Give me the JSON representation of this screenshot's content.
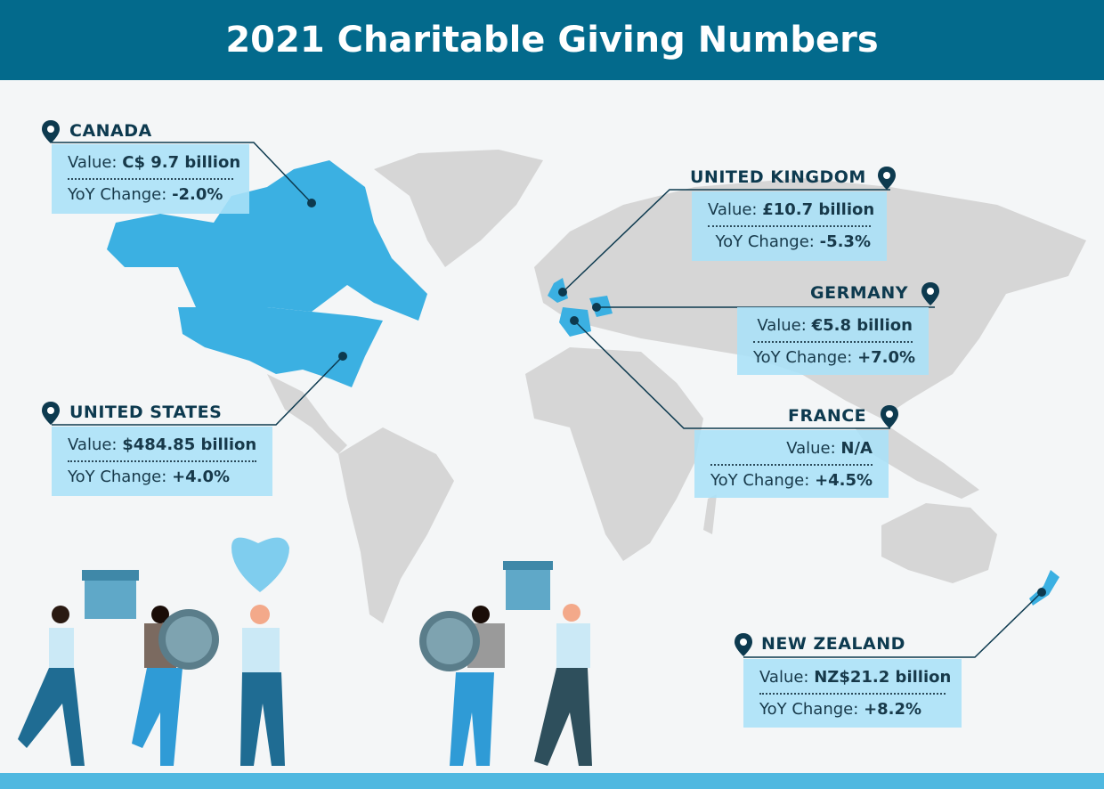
{
  "title": "2021 Charitable Giving Numbers",
  "value_label": "Value:",
  "yoy_label": "YoY Change:",
  "countries": {
    "canada": {
      "name": "CANADA",
      "value": "C$ 9.7 billion",
      "yoy": "-2.0%"
    },
    "united_kingdom": {
      "name": "UNITED KINGDOM",
      "value": "£10.7 billion",
      "yoy": "-5.3%"
    },
    "germany": {
      "name": "GERMANY",
      "value": "€5.8 billion",
      "yoy": "+7.0%"
    },
    "united_states": {
      "name": "UNITED STATES",
      "value": "$484.85 billion",
      "yoy": "+4.0%"
    },
    "france": {
      "name": "FRANCE",
      "value": "N/A",
      "yoy": "+4.5%"
    },
    "new_zealand": {
      "name": "NEW ZEALAND",
      "value": "NZ$21.2 billion",
      "yoy": "+8.2%"
    }
  },
  "colors": {
    "header": "#036a8c",
    "highlight": "#3bb0e2",
    "land": "#d6d6d6",
    "box": "#aae1f8",
    "text": "#0d3a4f"
  }
}
